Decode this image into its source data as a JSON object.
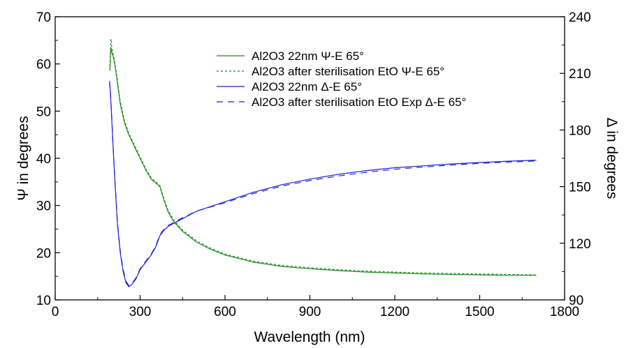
{
  "chart_data": {
    "type": "line",
    "xlabel": "Wavelength (nm)",
    "ylabel_left": "Ψ in degrees",
    "ylabel_right": "Δ in degrees",
    "xlim": [
      0,
      1800
    ],
    "ylim_left": [
      10,
      70
    ],
    "ylim_right": [
      90,
      240
    ],
    "x_ticks": [
      "0",
      "300",
      "600",
      "900",
      "1200",
      "1500",
      "1800"
    ],
    "y_left_ticks": [
      "10",
      "20",
      "30",
      "40",
      "50",
      "60",
      "70"
    ],
    "y_right_ticks": [
      "90",
      "120",
      "150",
      "180",
      "210",
      "240"
    ],
    "grid": false,
    "legend_position": "top-right",
    "colors": {
      "psi": "#1a8a1a",
      "delta": "#1f1fd6"
    },
    "series": [
      {
        "name": "Al2O3 22nm Ψ-E 65°",
        "axis": "left",
        "color": "#1a8a1a",
        "style": "solid",
        "x": [
          193,
          197,
          200,
          205,
          210,
          220,
          230,
          245,
          260,
          280,
          300,
          320,
          340,
          355,
          370,
          385,
          400,
          420,
          450,
          500,
          550,
          600,
          700,
          800,
          900,
          1000,
          1100,
          1200,
          1300,
          1400,
          1500,
          1600,
          1700
        ],
        "y": [
          58.5,
          63.5,
          62.5,
          61.5,
          60,
          56,
          51.5,
          47.5,
          45,
          42.5,
          40,
          37.5,
          35.5,
          34.8,
          34,
          31,
          28.5,
          26.5,
          24.5,
          22.2,
          20.7,
          19.5,
          18.0,
          17.1,
          16.6,
          16.2,
          15.9,
          15.7,
          15.5,
          15.4,
          15.3,
          15.2,
          15.2
        ]
      },
      {
        "name": "Al2O3 after sterilisation EtO Ψ-E 65°",
        "axis": "left",
        "color": "#1a8a1a",
        "style": "dotted",
        "x": [
          193,
          197,
          200,
          205,
          210,
          220,
          230,
          245,
          260,
          280,
          300,
          320,
          340,
          355,
          370,
          385,
          400,
          420,
          450,
          500,
          550,
          600,
          700,
          800,
          900,
          1000,
          1100,
          1200,
          1300,
          1400,
          1500,
          1600,
          1700
        ],
        "y": [
          59.5,
          65.3,
          63.5,
          62,
          60.5,
          56.5,
          52,
          48,
          45.3,
          42.8,
          40.3,
          37.8,
          35.8,
          35,
          34.2,
          31.3,
          28.8,
          26.8,
          24.8,
          22.5,
          20.9,
          19.7,
          18.2,
          17.3,
          16.8,
          16.4,
          16.1,
          15.9,
          15.7,
          15.6,
          15.5,
          15.4,
          15.3
        ]
      },
      {
        "name": "Al2O3 22nm Δ-E 65°",
        "axis": "right",
        "color": "#1f1fd6",
        "style": "solid",
        "x": [
          192,
          195,
          200,
          205,
          210,
          220,
          230,
          240,
          250,
          260,
          270,
          285,
          300,
          320,
          340,
          355,
          370,
          385,
          400,
          450,
          500,
          600,
          700,
          800,
          900,
          1000,
          1100,
          1200,
          1300,
          1400,
          1500,
          1600,
          1700
        ],
        "y": [
          205,
          200,
          185,
          170,
          155,
          130,
          115,
          105,
          99,
          97,
          98,
          101,
          106,
          110,
          114,
          118,
          124,
          127,
          129,
          133,
          137,
          142,
          147,
          151,
          154,
          156.5,
          158.5,
          160,
          161,
          162,
          162.8,
          163.5,
          164
        ]
      },
      {
        "name": "Al2O3 after sterilisation EtO Exp Δ-E 65°",
        "axis": "right",
        "color": "#1f1fd6",
        "style": "dashed",
        "x": [
          192,
          195,
          200,
          205,
          210,
          220,
          230,
          240,
          250,
          260,
          270,
          285,
          300,
          320,
          340,
          355,
          370,
          385,
          400,
          450,
          500,
          600,
          700,
          800,
          900,
          1000,
          1100,
          1200,
          1300,
          1400,
          1500,
          1600,
          1700
        ],
        "y": [
          206,
          201,
          186,
          171,
          156,
          131,
          116,
          106,
          100,
          97.5,
          98.5,
          101.5,
          106.5,
          110.5,
          114.5,
          118.5,
          124.5,
          127.5,
          129.5,
          133.5,
          137,
          141.5,
          146.3,
          150.3,
          153.2,
          155.6,
          157.6,
          159.2,
          160.4,
          161.4,
          162.3,
          163,
          163.6
        ]
      }
    ]
  }
}
